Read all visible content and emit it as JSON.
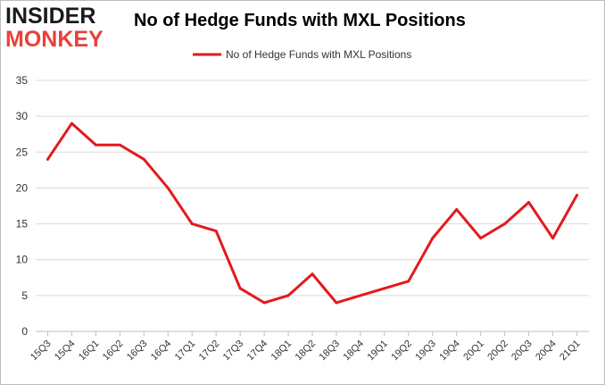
{
  "logo": {
    "line1": "INSIDER",
    "line2": "MONKEY"
  },
  "chart_data": {
    "type": "line",
    "title": "No of Hedge Funds with MXL Positions",
    "xlabel": "",
    "ylabel": "",
    "ylim": [
      0,
      35
    ],
    "yticks": [
      0,
      5,
      10,
      15,
      20,
      25,
      30,
      35
    ],
    "grid": true,
    "legend_position": "top-center",
    "categories": [
      "15Q3",
      "15Q4",
      "16Q1",
      "16Q2",
      "16Q3",
      "16Q4",
      "17Q1",
      "17Q2",
      "17Q3",
      "17Q4",
      "18Q1",
      "18Q2",
      "18Q3",
      "18Q4",
      "19Q1",
      "19Q2",
      "19Q3",
      "19Q4",
      "20Q1",
      "20Q2",
      "20Q3",
      "20Q4",
      "21Q1"
    ],
    "series": [
      {
        "name": "No of Hedge Funds with MXL Positions",
        "color": "#e31a1c",
        "values": [
          24,
          29,
          26,
          26,
          24,
          20,
          15,
          14,
          6,
          4,
          5,
          8,
          4,
          5,
          6,
          7,
          13,
          17,
          13,
          15,
          18,
          13,
          19
        ]
      }
    ]
  }
}
